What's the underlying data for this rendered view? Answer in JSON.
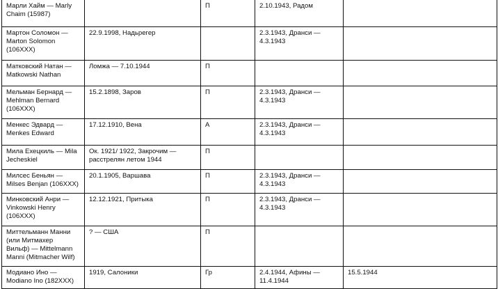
{
  "rows": [
    {
      "name": "Марли Хайм — Marly\nChaim (15987)",
      "birth": "",
      "nat": "П",
      "deport": "2.10.1943, Радом",
      "death": ""
    },
    {
      "name": "Мартон Соломон —\nMarton Solomon\n(106XXX)",
      "birth": "22.9.1998, Надьрегер",
      "nat": "",
      "deport": "2.3.1943, Дранси —\n4.3.1943",
      "death": ""
    },
    {
      "name": "Матковский Натан —\nMatkowski Nathan",
      "birth": "Ломжа — 7.10.1944",
      "nat": "П",
      "deport": "",
      "death": ""
    },
    {
      "name": "Мельман Бернард —\nMehlman Bernard\n(106XXX)",
      "birth": "15.2.1898, Заров",
      "nat": "П",
      "deport": "2.3.1943, Дранси —\n4.3.1943",
      "death": ""
    },
    {
      "name": "Менкес Эдвард —\nMenkes Edward",
      "birth": "17.12.1910, Вена",
      "nat": "А",
      "deport": "2.3.1943, Дранси —\n4.3.1943",
      "death": ""
    },
    {
      "name": "Мила Ехецкиль — Mila\nJecheskiel",
      "birth": "Ок. 1921/ 1922, Закрочим —\nрасстрелян летом 1944",
      "nat": "П",
      "deport": "",
      "death": ""
    },
    {
      "name": "Милсес Беньян —\nMilses Benjan (106XXX)",
      "birth": "20.1.1905, Варшава",
      "nat": "П",
      "deport": "2.3.1943, Дранси —\n4.3.1943",
      "death": ""
    },
    {
      "name": "Минковский Анри —\nVinkowski Henry\n(106XXX)",
      "birth": "12.12.1921, Притыка",
      "nat": "П",
      "deport": "2.3.1943, Дранси —\n4.3.1943",
      "death": ""
    },
    {
      "name": "Миттельманн Манни\n(или Митмахер\nВильф) — Mittelmann\nManni (Mitmacher Wilf)",
      "birth": "? — США",
      "nat": "П",
      "deport": "",
      "death": ""
    },
    {
      "name": "Модиано Ино —\nModiano Ino (182XXX)",
      "birth": "1919, Салоники",
      "nat": "Гр",
      "deport": "2.4.1944, Афины —\n11.4.1944",
      "death": "15.5.1944"
    }
  ]
}
